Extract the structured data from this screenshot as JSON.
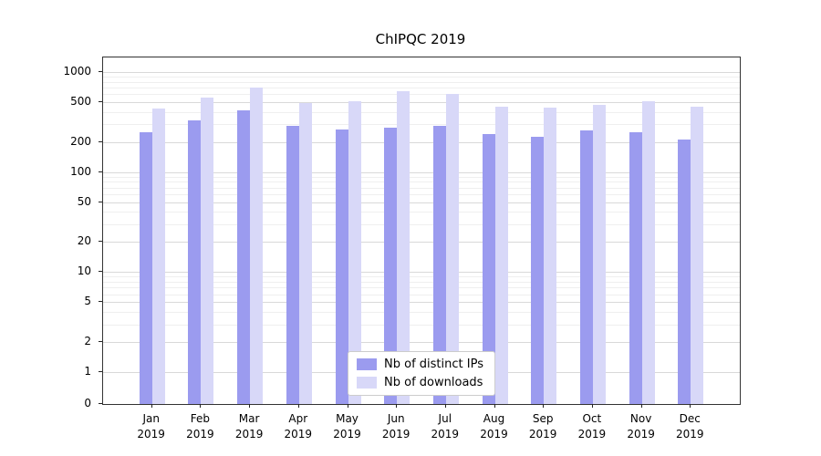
{
  "chart_data": {
    "type": "bar",
    "title": "ChIPQC 2019",
    "categories": [
      "Jan",
      "Feb",
      "Mar",
      "Apr",
      "May",
      "Jun",
      "Jul",
      "Aug",
      "Sep",
      "Oct",
      "Nov",
      "Dec"
    ],
    "year": "2019",
    "series": [
      {
        "name": "Nb of distinct IPs",
        "color": "#9b9bef",
        "values": [
          253,
          332,
          415,
          291,
          266,
          281,
          290,
          238,
          224,
          262,
          251,
          212
        ]
      },
      {
        "name": "Nb of downloads",
        "color": "#d8d8f8",
        "values": [
          432,
          556,
          700,
          487,
          512,
          648,
          610,
          455,
          442,
          470,
          512,
          452
        ]
      }
    ],
    "yticks": [
      1000,
      500,
      200,
      100,
      50,
      20,
      10,
      5,
      2,
      1,
      0
    ],
    "yscale": "symlog",
    "ylim": [
      0,
      1400
    ],
    "xlabel": "",
    "ylabel": "",
    "grid": true,
    "legend_position": "bottom-center"
  }
}
